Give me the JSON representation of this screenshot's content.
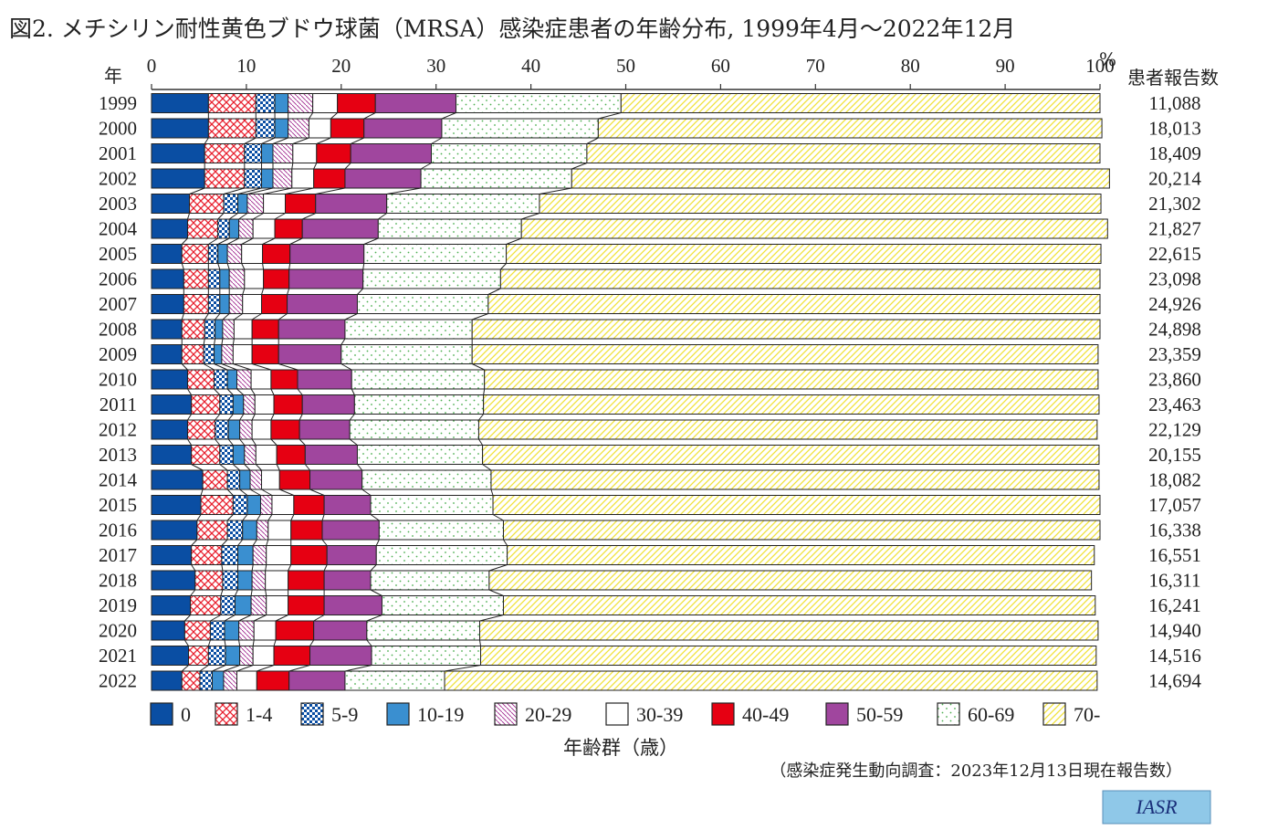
{
  "chart_data": {
    "type": "bar",
    "orientation": "horizontal",
    "stacked": "percent",
    "title": "図2. メチシリン耐性黄色ブドウ球菌（MRSA）感染症患者の年齢分布, 1999年4月～2022年12月",
    "xlabel": "年齢群（歳）",
    "y_header": "年",
    "x_unit": "%",
    "count_header": "患者報告数",
    "xlim": [
      0,
      100
    ],
    "xticks": [
      "0",
      "10",
      "20",
      "30",
      "40",
      "50",
      "60",
      "70",
      "80",
      "90",
      "100"
    ],
    "legend_position": "bottom",
    "source_note": "（感染症発生動向調査：2023年12月13日現在報告数）",
    "logo_text": "IASR",
    "categories": [
      "1999",
      "2000",
      "2001",
      "2002",
      "2003",
      "2004",
      "2005",
      "2006",
      "2007",
      "2008",
      "2009",
      "2010",
      "2011",
      "2012",
      "2013",
      "2014",
      "2015",
      "2016",
      "2017",
      "2018",
      "2019",
      "2020",
      "2021",
      "2022"
    ],
    "counts": [
      "11,088",
      "18,013",
      "18,409",
      "20,214",
      "21,302",
      "21,827",
      "22,615",
      "23,098",
      "24,926",
      "24,898",
      "23,359",
      "23,860",
      "23,463",
      "22,129",
      "20,155",
      "18,082",
      "17,057",
      "16,338",
      "16,551",
      "16,311",
      "16,241",
      "14,940",
      "14,516",
      "14,694"
    ],
    "series": [
      {
        "name": "0",
        "color": "#0a4ea3",
        "pattern": "solid",
        "values": [
          6.0,
          6.0,
          5.6,
          5.6,
          4.0,
          3.8,
          3.2,
          3.4,
          3.4,
          3.2,
          3.2,
          3.8,
          4.2,
          3.8,
          4.2,
          5.4,
          5.2,
          4.8,
          4.2,
          4.6,
          4.1,
          3.5,
          3.9,
          3.2
        ]
      },
      {
        "name": "1-4",
        "color": "#e8202e",
        "pattern": "crosshatch",
        "values": [
          5.0,
          5.0,
          4.2,
          4.2,
          3.6,
          3.2,
          2.8,
          2.6,
          2.6,
          2.4,
          2.3,
          2.8,
          3.0,
          2.9,
          3.0,
          2.6,
          3.4,
          3.2,
          3.2,
          2.9,
          3.2,
          2.7,
          2.1,
          1.9
        ]
      },
      {
        "name": "5-9",
        "color": "#0a4ea3",
        "pattern": "checker",
        "values": [
          2.0,
          2.0,
          1.8,
          1.8,
          1.5,
          1.2,
          1.0,
          1.2,
          1.2,
          1.1,
          1.1,
          1.4,
          1.4,
          1.4,
          1.4,
          1.3,
          1.5,
          1.6,
          1.7,
          1.6,
          1.5,
          1.5,
          1.8,
          1.3
        ]
      },
      {
        "name": "10-19",
        "color": "#3a8fd0",
        "pattern": "solid",
        "values": [
          1.4,
          1.4,
          1.2,
          1.2,
          1.0,
          1.0,
          1.0,
          1.0,
          1.0,
          0.8,
          0.8,
          1.0,
          1.1,
          1.2,
          1.2,
          1.1,
          1.4,
          1.5,
          1.6,
          1.5,
          1.7,
          1.5,
          1.5,
          1.2
        ]
      },
      {
        "name": "20-29",
        "color": "#a0278f",
        "pattern": "diag",
        "values": [
          2.6,
          2.2,
          2.1,
          2.0,
          1.7,
          1.5,
          1.5,
          1.6,
          1.4,
          1.2,
          1.2,
          1.5,
          1.2,
          1.3,
          1.2,
          1.2,
          1.2,
          1.2,
          1.4,
          1.4,
          1.6,
          1.6,
          1.4,
          1.4
        ]
      },
      {
        "name": "30-39",
        "color": "#ffffff",
        "pattern": "blank",
        "values": [
          2.6,
          2.3,
          2.5,
          2.3,
          2.3,
          2.3,
          2.2,
          2.0,
          2.0,
          1.9,
          2.0,
          2.1,
          2.0,
          2.0,
          2.2,
          1.9,
          2.3,
          2.4,
          2.6,
          2.4,
          2.3,
          2.3,
          2.2,
          2.1
        ]
      },
      {
        "name": "40-49",
        "color": "#e60012",
        "pattern": "solid",
        "values": [
          4.0,
          3.5,
          3.6,
          3.3,
          3.2,
          2.9,
          2.9,
          2.7,
          2.7,
          2.8,
          2.8,
          2.8,
          3.0,
          3.0,
          3.0,
          3.2,
          3.2,
          3.3,
          3.8,
          3.8,
          3.8,
          4.0,
          3.8,
          3.4
        ]
      },
      {
        "name": "50-59",
        "color": "#a0469e",
        "pattern": "solid",
        "values": [
          8.5,
          8.2,
          8.5,
          8.0,
          7.5,
          8.0,
          7.8,
          7.8,
          7.4,
          7.0,
          6.6,
          5.7,
          5.5,
          5.3,
          5.5,
          5.5,
          4.9,
          6.0,
          5.2,
          4.9,
          6.1,
          5.6,
          6.5,
          5.9
        ]
      },
      {
        "name": "60-69",
        "color": "#4caf50",
        "pattern": "dots",
        "values": [
          17.4,
          16.5,
          16.4,
          15.9,
          16.1,
          15.1,
          15.0,
          14.5,
          13.8,
          13.4,
          13.8,
          14.0,
          13.6,
          13.6,
          13.2,
          13.6,
          12.9,
          13.1,
          13.8,
          12.5,
          12.8,
          11.9,
          11.5,
          10.5
        ]
      },
      {
        "name": "70-",
        "color": "#f0e23a",
        "pattern": "hatch",
        "values": [
          50.5,
          53.1,
          54.1,
          56.7,
          59.2,
          61.8,
          62.7,
          63.2,
          64.5,
          66.2,
          66.0,
          64.7,
          64.9,
          65.2,
          65.0,
          64.1,
          64.0,
          62.9,
          61.9,
          63.5,
          62.4,
          65.2,
          64.9,
          68.8
        ]
      }
    ]
  }
}
